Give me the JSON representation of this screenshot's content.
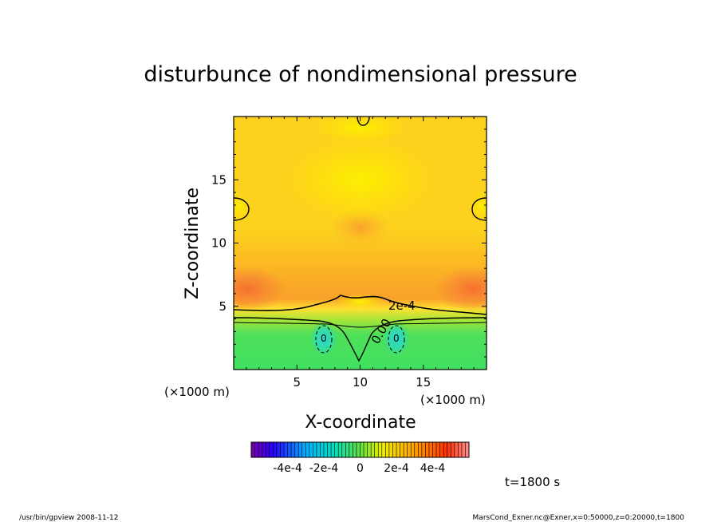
{
  "chart_data": {
    "type": "heatmap",
    "title": "disturbunce of nondimensional pressure",
    "xlabel": "X-coordinate",
    "ylabel": "Z-coordinate",
    "x_unit": "(×1000 m)",
    "y_unit": "(×1000 m)",
    "xlim": [
      0,
      20
    ],
    "ylim": [
      0,
      20
    ],
    "x_ticks": [
      5,
      10,
      15
    ],
    "y_ticks": [
      5,
      10,
      15
    ],
    "contour_labels": [
      "2e-4",
      "0.00",
      "0",
      "0"
    ],
    "colorbar": {
      "range": [
        -0.0006,
        0.0006
      ],
      "tick_labels": [
        "-4e-4",
        "-2e-4",
        "0",
        "2e-4",
        "4e-4"
      ],
      "tick_values": [
        -0.0004,
        -0.0002,
        0,
        0.0002,
        0.0004
      ]
    },
    "time_label": "t=1800 s"
  },
  "footer": {
    "left": "/usr/bin/gpview   2008-11-12",
    "right": "MarsCond_Exner.nc@Exner,x=0:50000,z=0:20000,t=1800"
  }
}
